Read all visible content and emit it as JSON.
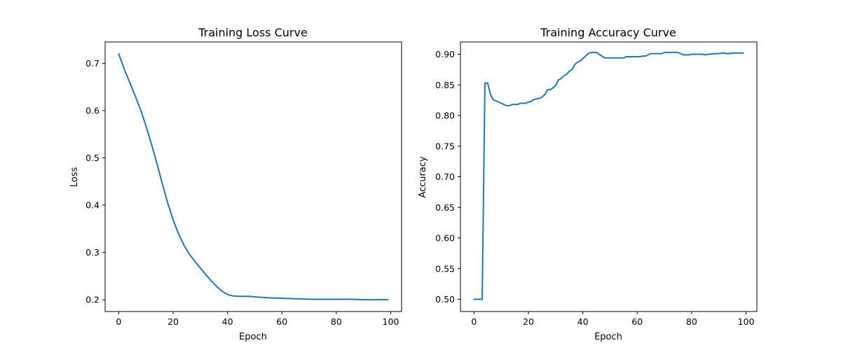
{
  "colors": {
    "series": "#1f77b4"
  },
  "chart_data": [
    {
      "type": "line",
      "title": "Training Loss Curve",
      "xlabel": "Epoch",
      "ylabel": "Loss",
      "xlim": [
        -5,
        104
      ],
      "ylim": [
        0.175,
        0.745
      ],
      "xticks": [
        0,
        20,
        40,
        60,
        80,
        100
      ],
      "yticks": [
        0.2,
        0.3,
        0.4,
        0.5,
        0.6,
        0.7
      ],
      "ytick_labels": [
        "0.2",
        "0.3",
        "0.4",
        "0.5",
        "0.6",
        "0.7"
      ],
      "grid": false,
      "series": [
        {
          "x": [
            0,
            2,
            4,
            6,
            8,
            10,
            12,
            14,
            16,
            18,
            20,
            22,
            24,
            26,
            28,
            30,
            32,
            34,
            36,
            38,
            40,
            42,
            44,
            46,
            48,
            50,
            55,
            60,
            65,
            70,
            75,
            80,
            85,
            90,
            95,
            99
          ],
          "y": [
            0.72,
            0.688,
            0.66,
            0.632,
            0.602,
            0.568,
            0.53,
            0.489,
            0.446,
            0.405,
            0.369,
            0.339,
            0.315,
            0.296,
            0.281,
            0.267,
            0.253,
            0.24,
            0.228,
            0.218,
            0.211,
            0.208,
            0.207,
            0.207,
            0.207,
            0.206,
            0.204,
            0.203,
            0.202,
            0.201,
            0.201,
            0.201,
            0.201,
            0.2,
            0.2,
            0.2
          ]
        }
      ]
    },
    {
      "type": "line",
      "title": "Training Accuracy Curve",
      "xlabel": "Epoch",
      "ylabel": "Accuracy",
      "xlim": [
        -5,
        104
      ],
      "ylim": [
        0.48,
        0.92
      ],
      "xticks": [
        0,
        20,
        40,
        60,
        80,
        100
      ],
      "yticks": [
        0.5,
        0.55,
        0.6,
        0.65,
        0.7,
        0.75,
        0.8,
        0.85,
        0.9
      ],
      "ytick_labels": [
        "0.50",
        "0.55",
        "0.60",
        "0.65",
        "0.70",
        "0.75",
        "0.80",
        "0.85",
        "0.90"
      ],
      "grid": false,
      "series": [
        {
          "x": [
            0,
            1,
            2,
            3,
            4,
            5,
            6,
            7,
            8,
            9,
            10,
            11,
            12,
            13,
            14,
            15,
            16,
            17,
            18,
            19,
            20,
            21,
            22,
            23,
            24,
            25,
            26,
            27,
            28,
            29,
            30,
            31,
            32,
            33,
            34,
            35,
            36,
            37,
            38,
            39,
            40,
            41,
            42,
            43,
            44,
            45,
            46,
            47,
            48,
            49,
            50,
            51,
            52,
            53,
            54,
            55,
            56,
            57,
            58,
            59,
            60,
            61,
            62,
            63,
            64,
            65,
            66,
            67,
            68,
            69,
            70,
            71,
            72,
            73,
            74,
            75,
            76,
            77,
            78,
            79,
            80,
            81,
            82,
            83,
            84,
            85,
            86,
            87,
            88,
            89,
            90,
            91,
            92,
            93,
            94,
            95,
            96,
            97,
            98,
            99
          ],
          "y": [
            0.5,
            0.5,
            0.5,
            0.5,
            0.853,
            0.853,
            0.835,
            0.826,
            0.824,
            0.822,
            0.82,
            0.818,
            0.816,
            0.816,
            0.818,
            0.818,
            0.818,
            0.82,
            0.82,
            0.82,
            0.822,
            0.823,
            0.826,
            0.827,
            0.828,
            0.83,
            0.834,
            0.842,
            0.842,
            0.845,
            0.849,
            0.858,
            0.86,
            0.865,
            0.867,
            0.872,
            0.875,
            0.883,
            0.887,
            0.889,
            0.893,
            0.897,
            0.901,
            0.903,
            0.903,
            0.903,
            0.9,
            0.897,
            0.894,
            0.894,
            0.894,
            0.894,
            0.894,
            0.894,
            0.894,
            0.894,
            0.896,
            0.896,
            0.896,
            0.896,
            0.896,
            0.896,
            0.897,
            0.897,
            0.899,
            0.901,
            0.901,
            0.901,
            0.901,
            0.901,
            0.903,
            0.903,
            0.903,
            0.903,
            0.903,
            0.903,
            0.901,
            0.899,
            0.899,
            0.899,
            0.9,
            0.9,
            0.9,
            0.9,
            0.9,
            0.899,
            0.9,
            0.9,
            0.901,
            0.901,
            0.901,
            0.902,
            0.902,
            0.901,
            0.901,
            0.902,
            0.902,
            0.902,
            0.902,
            0.902
          ]
        }
      ]
    }
  ]
}
